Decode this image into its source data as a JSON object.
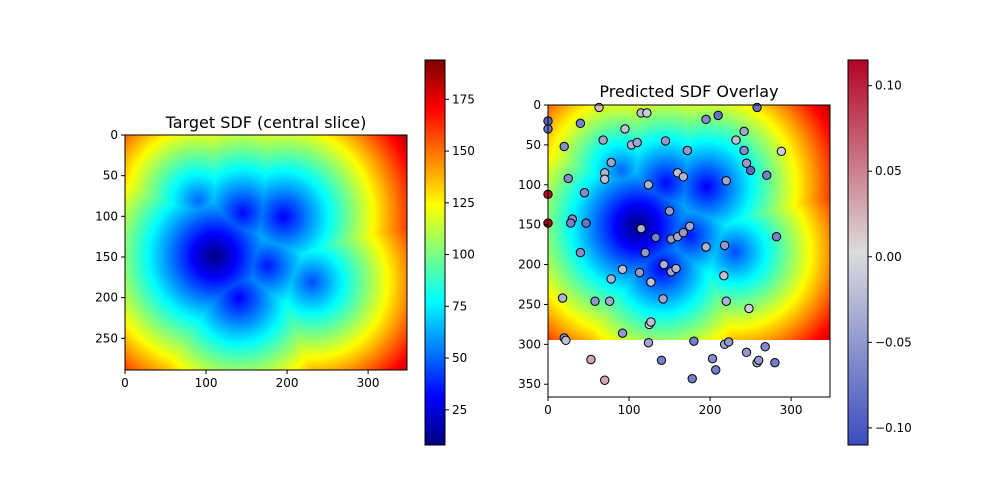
{
  "chart_data": [
    {
      "type": "heatmap",
      "title": "Target SDF (central slice)",
      "xlim": [
        0,
        348
      ],
      "ylim": [
        289,
        0
      ],
      "x_ticks": [
        0,
        100,
        200,
        300
      ],
      "y_ticks": [
        0,
        50,
        100,
        150,
        200,
        250
      ],
      "colormap": "jet",
      "colorbar": {
        "range": [
          8,
          194
        ],
        "ticks": [
          25,
          50,
          75,
          100,
          125,
          150,
          175
        ]
      },
      "field_minima": [
        {
          "x": 110,
          "y": 148,
          "value": 8
        },
        {
          "x": 195,
          "y": 100,
          "value": 30
        },
        {
          "x": 140,
          "y": 200,
          "value": 30
        },
        {
          "x": 175,
          "y": 160,
          "value": 35
        },
        {
          "x": 145,
          "y": 95,
          "value": 32
        },
        {
          "x": 230,
          "y": 180,
          "value": 45
        },
        {
          "x": 90,
          "y": 80,
          "value": 50
        }
      ],
      "max_value": 194
    },
    {
      "type": "scatter",
      "title": "Predicted SDF Overlay",
      "xlim": [
        0,
        348
      ],
      "ylim": [
        366,
        0
      ],
      "background_extent_y": 289,
      "x_ticks": [
        0,
        100,
        200,
        300
      ],
      "y_ticks": [
        0,
        50,
        100,
        150,
        200,
        250,
        300,
        350
      ],
      "colormap": "coolwarm",
      "colorbar": {
        "range": [
          -0.11,
          0.115
        ],
        "ticks": [
          0.1,
          0.05,
          0.0,
          -0.05,
          -0.1
        ]
      },
      "points": [
        [
          63,
          3,
          0.02
        ],
        [
          115,
          10,
          -0.02
        ],
        [
          122,
          10,
          -0.01
        ],
        [
          195,
          18,
          -0.06
        ],
        [
          210,
          13,
          -0.08
        ],
        [
          258,
          3,
          -0.08
        ],
        [
          0,
          20,
          -0.09
        ],
        [
          0,
          30,
          -0.08
        ],
        [
          40,
          23,
          -0.07
        ],
        [
          95,
          30,
          -0.02
        ],
        [
          242,
          33,
          -0.04
        ],
        [
          288,
          58,
          -0.01
        ],
        [
          20,
          52,
          -0.06
        ],
        [
          68,
          44,
          -0.04
        ],
        [
          103,
          50,
          -0.03
        ],
        [
          110,
          47,
          -0.04
        ],
        [
          145,
          45,
          -0.05
        ],
        [
          172,
          57,
          -0.05
        ],
        [
          232,
          44,
          -0.02
        ],
        [
          242,
          57,
          -0.06
        ],
        [
          245,
          73,
          -0.05
        ],
        [
          250,
          82,
          -0.09
        ],
        [
          270,
          88,
          -0.07
        ],
        [
          78,
          72,
          -0.04
        ],
        [
          70,
          85,
          -0.03
        ],
        [
          70,
          93,
          -0.02
        ],
        [
          25,
          92,
          -0.06
        ],
        [
          124,
          100,
          -0.03
        ],
        [
          160,
          85,
          -0.02
        ],
        [
          167,
          90,
          -0.03
        ],
        [
          220,
          95,
          -0.04
        ],
        [
          0,
          112,
          0.11
        ],
        [
          45,
          110,
          -0.06
        ],
        [
          0,
          148,
          0.115
        ],
        [
          30,
          143,
          -0.06
        ],
        [
          28,
          148,
          -0.07
        ],
        [
          47,
          148,
          -0.08
        ],
        [
          115,
          155,
          -0.03
        ],
        [
          150,
          133,
          -0.05
        ],
        [
          175,
          152,
          -0.04
        ],
        [
          133,
          166,
          -0.07
        ],
        [
          152,
          168,
          -0.05
        ],
        [
          160,
          165,
          -0.04
        ],
        [
          167,
          160,
          -0.05
        ],
        [
          195,
          178,
          -0.03
        ],
        [
          218,
          176,
          -0.05
        ],
        [
          282,
          165,
          -0.07
        ],
        [
          40,
          185,
          -0.06
        ],
        [
          120,
          185,
          -0.05
        ],
        [
          92,
          206,
          -0.02
        ],
        [
          78,
          218,
          -0.03
        ],
        [
          113,
          210,
          -0.05
        ],
        [
          127,
          222,
          -0.02
        ],
        [
          143,
          200,
          -0.03
        ],
        [
          152,
          209,
          -0.04
        ],
        [
          158,
          205,
          -0.03
        ],
        [
          217,
          214,
          -0.02
        ],
        [
          18,
          242,
          -0.03
        ],
        [
          58,
          246,
          -0.05
        ],
        [
          76,
          246,
          -0.04
        ],
        [
          142,
          243,
          -0.04
        ],
        [
          220,
          246,
          -0.03
        ],
        [
          248,
          255,
          -0.01
        ],
        [
          125,
          275,
          0.0
        ],
        [
          127,
          272,
          -0.02
        ],
        [
          92,
          286,
          -0.05
        ],
        [
          20,
          292,
          -0.06
        ],
        [
          22,
          295,
          -0.02
        ],
        [
          124,
          298,
          -0.04
        ],
        [
          180,
          296,
          -0.07
        ],
        [
          218,
          300,
          -0.04
        ],
        [
          223,
          297,
          -0.05
        ],
        [
          268,
          303,
          -0.06
        ],
        [
          203,
          318,
          -0.06
        ],
        [
          245,
          310,
          -0.05
        ],
        [
          258,
          323,
          -0.03
        ],
        [
          260,
          320,
          -0.05
        ],
        [
          280,
          323,
          -0.07
        ],
        [
          53,
          319,
          0.03
        ],
        [
          140,
          320,
          -0.07
        ],
        [
          207,
          332,
          -0.07
        ],
        [
          178,
          343,
          -0.07
        ],
        [
          70,
          345,
          0.03
        ]
      ]
    }
  ]
}
